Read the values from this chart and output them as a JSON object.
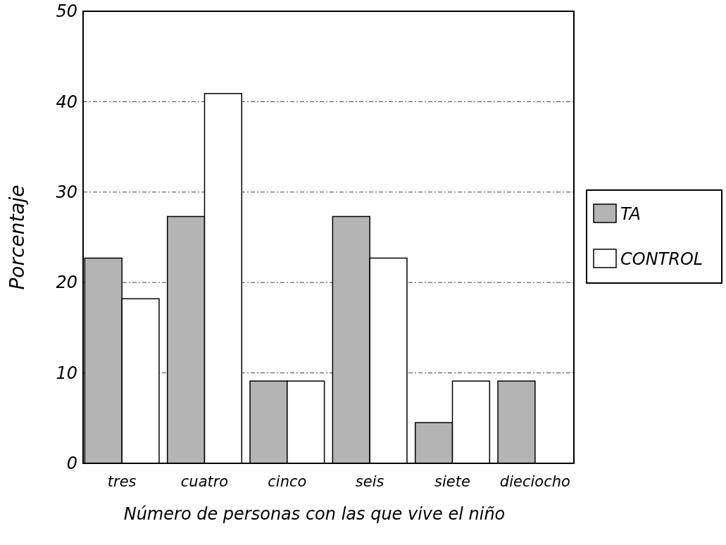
{
  "chart_data": {
    "type": "bar",
    "xlabel": "Número de personas con las que vive el niño",
    "ylabel": "Porcentaje",
    "categories": [
      "tres",
      "cuatro",
      "cinco",
      "seis",
      "siete",
      "dieciocho"
    ],
    "series": [
      {
        "name": "TA",
        "color": "#b4b4b4",
        "values": [
          22.7,
          27.3,
          9.1,
          27.3,
          4.5,
          9.1
        ]
      },
      {
        "name": "CONTROL",
        "color": "#ffffff",
        "values": [
          18.2,
          40.9,
          9.1,
          22.7,
          9.1,
          null
        ]
      }
    ],
    "ylim": [
      0,
      50
    ],
    "yticks": [
      0,
      10,
      20,
      30,
      40,
      50
    ],
    "grid": "y",
    "legend": "right"
  }
}
